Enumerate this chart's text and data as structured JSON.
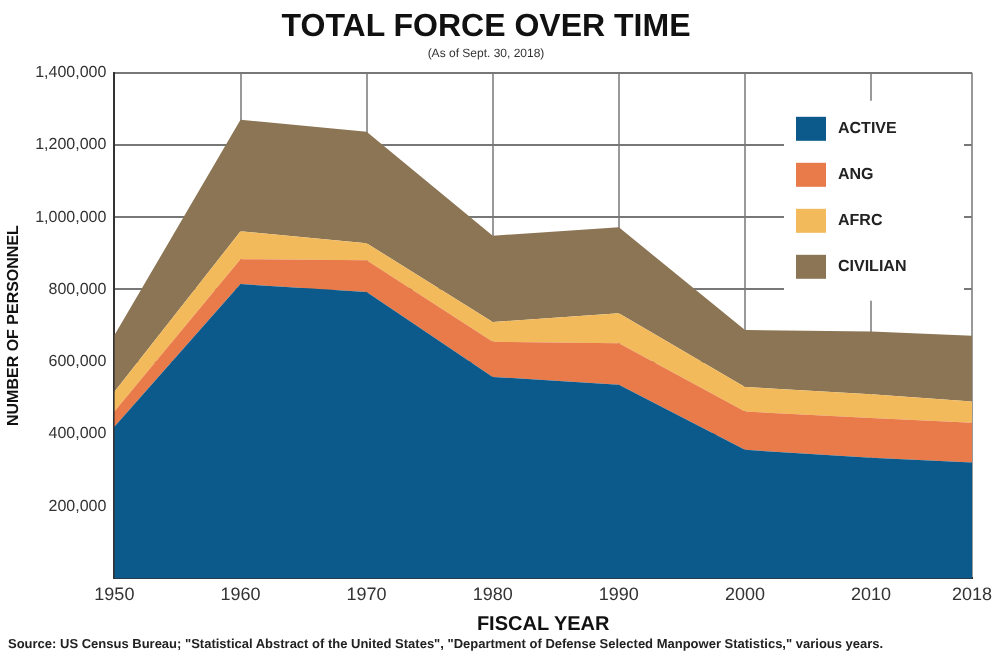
{
  "chart_data": {
    "type": "area",
    "title": "TOTAL FORCE OVER TIME",
    "subtitle": "(As of Sept. 30, 2018)",
    "xlabel": "FISCAL YEAR",
    "ylabel": "NUMBER OF PERSONNEL",
    "x": [
      1950,
      1960,
      1970,
      1980,
      1990,
      2000,
      2010,
      2018
    ],
    "series": [
      {
        "name": "ACTIVE",
        "color": "#0b5a8b",
        "values": [
          420000,
          815000,
          793000,
          558000,
          536000,
          356000,
          334000,
          321000
        ]
      },
      {
        "name": "ANG",
        "color": "#e97a4a",
        "values": [
          42000,
          69000,
          88000,
          97000,
          115000,
          106000,
          110000,
          110000
        ]
      },
      {
        "name": "AFRC",
        "color": "#f3ba5b",
        "values": [
          55000,
          77000,
          47000,
          55000,
          83000,
          68000,
          66000,
          59000
        ]
      },
      {
        "name": "CIVILIAN",
        "color": "#8b7554",
        "values": [
          156000,
          309000,
          309000,
          239000,
          238000,
          158000,
          174000,
          182000
        ]
      }
    ],
    "stacked": true,
    "xlim": [
      1950,
      2018
    ],
    "xticks": [
      1950,
      1960,
      1970,
      1980,
      1990,
      2000,
      2010,
      2018
    ],
    "ylim": [
      0,
      1400000
    ],
    "yticks": [
      {
        "value": 200000,
        "label": "200,000"
      },
      {
        "value": 400000,
        "label": "400,000"
      },
      {
        "value": 600000,
        "label": "600,000"
      },
      {
        "value": 800000,
        "label": "800,000"
      },
      {
        "value": 1000000,
        "label": "1,000,000"
      },
      {
        "value": 1200000,
        "label": "1,200,000"
      },
      {
        "value": 1400000,
        "label": "1,400,000"
      }
    ],
    "grid": true,
    "legend": "top right",
    "annotations": [
      "Source: US Census Bureau; \"Statistical Abstract of the United States\", \"Department of Defense Selected Manpower Statistics,\" various years."
    ]
  }
}
